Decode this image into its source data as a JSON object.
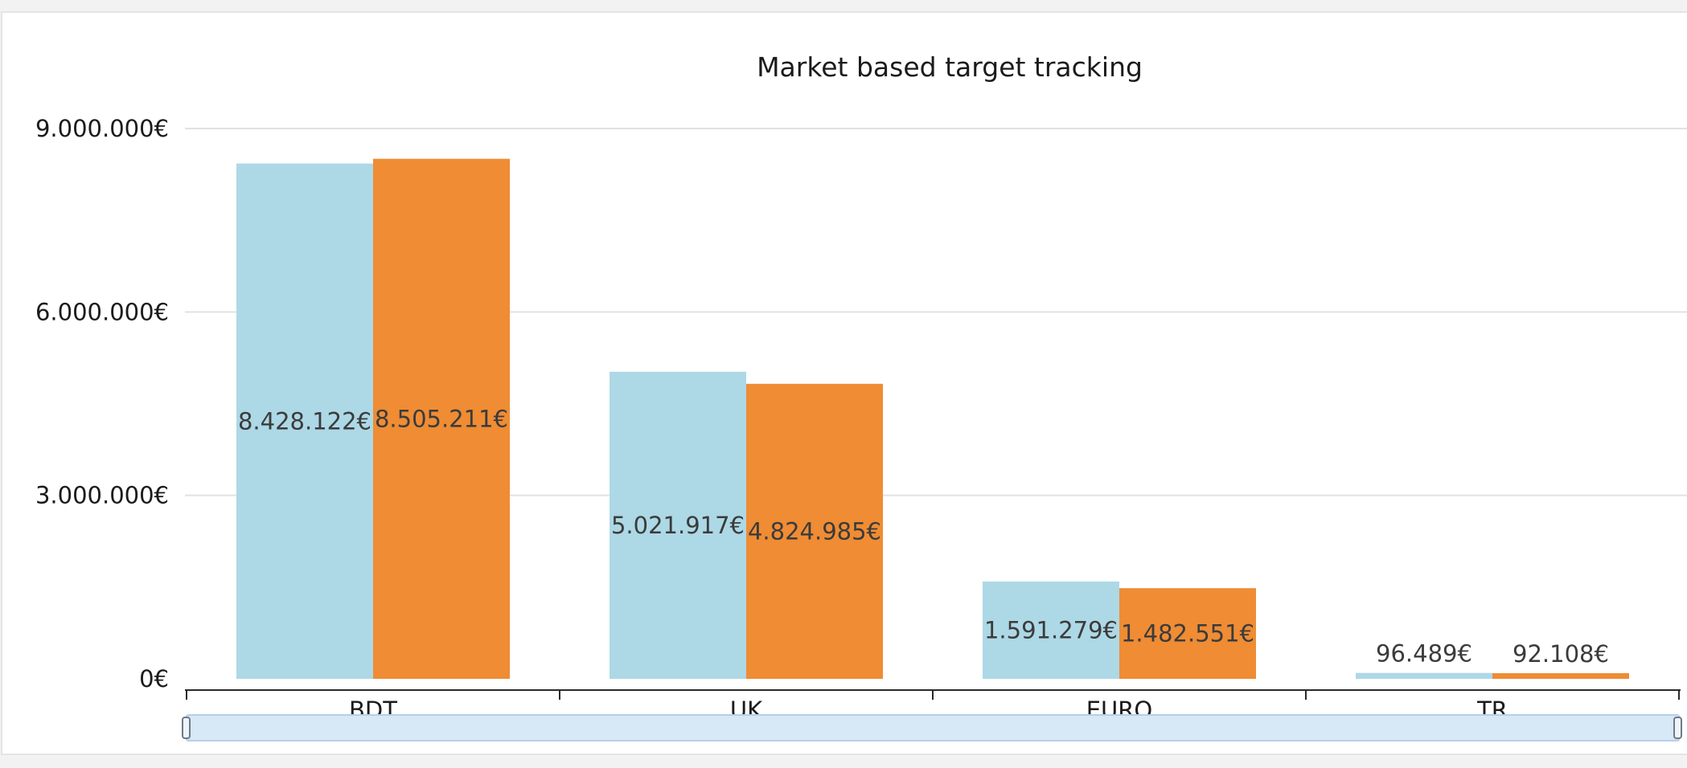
{
  "colors": {
    "series_a": "#add8e6",
    "series_b": "#ef8c34",
    "scroll_track": "#d7e8f6",
    "scroll_border": "#b6cfe6"
  },
  "chart_data": {
    "type": "bar",
    "title": "Market based target tracking",
    "xlabel": "",
    "ylabel": "",
    "categories": [
      "BDT",
      "UK",
      "EURO",
      "TR"
    ],
    "series": [
      {
        "values": [
          8428122,
          5021917,
          1591279,
          96489
        ]
      },
      {
        "values": [
          8505211,
          4824985,
          1482551,
          92108
        ]
      }
    ],
    "data_labels": [
      [
        "8.428.122€",
        "5.021.917€",
        "1.591.279€",
        "96.489€"
      ],
      [
        "8.505.211€",
        "4.824.985€",
        "1.482.551€",
        "92.108€"
      ]
    ],
    "ylim": [
      0,
      9000000
    ],
    "yticks": [
      0,
      3000000,
      6000000,
      9000000
    ],
    "ytick_labels": [
      "0€",
      "3.000.000€",
      "6.000.000€",
      "9.000.000€"
    ],
    "grid": true,
    "legend": "none"
  }
}
